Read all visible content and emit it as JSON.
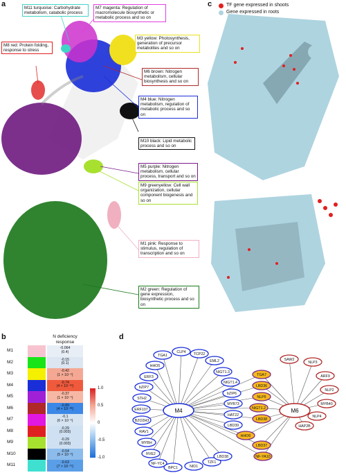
{
  "panels": {
    "a": "a",
    "b": "b",
    "c": "c",
    "d": "d"
  },
  "panel_a_labels": [
    {
      "id": "m11",
      "text": "M11 turquoise: Carbohydrate metabolism, catabolic process",
      "color": "#3fd6c6"
    },
    {
      "id": "m7",
      "text": "M7 magenta: Regulation of macromolecule biosynthetic or metabolic process and so on",
      "color": "#e040e0"
    },
    {
      "id": "m8",
      "text": "M8 red: Protein folding, response to stress",
      "color": "#e02020"
    },
    {
      "id": "m3",
      "text": "M3 yellow: Photosynthesis, generation of precursor metabolites and so on",
      "color": "#e8e020"
    },
    {
      "id": "m6",
      "text": "M6 brown: Nitrogen metabolism, cellular biosynthesis and so on",
      "color": "#b02828"
    },
    {
      "id": "m4",
      "text": "M4 blue: Nitrogen metabolism, regulation of metabolic process and so on",
      "color": "#1a2ed8"
    },
    {
      "id": "m10",
      "text": "M10 black: Lipid metabolic process and so on",
      "color": "#111111"
    },
    {
      "id": "m5",
      "text": "M5 purple: Nitrogen metabolism, cellular process, transport and so on",
      "color": "#7a1a8a"
    },
    {
      "id": "m9",
      "text": "M9 greenyellow: Cell wall organization, cellular component biogenesis and so on",
      "color": "#a8e030"
    },
    {
      "id": "m1",
      "text": "M1 pink: Response to stimulus, regulation of transcription and so on",
      "color": "#f0b0c0"
    },
    {
      "id": "m2",
      "text": "M2 green: Regulation of gene expression, biosynthetic process and so on",
      "color": "#1a7a1a"
    }
  ],
  "legend_c": [
    {
      "text": "TF gene expressed in shoots",
      "color": "#e02020"
    },
    {
      "text": "Gene expressed in roots",
      "color": "#aed4e0"
    }
  ],
  "panel_b": {
    "title": "N deficiency response",
    "rows": [
      {
        "name": "M1",
        "color": "#f7c3cf",
        "value": "-0.064",
        "p": "(0.4)",
        "heat": "#e8eef6"
      },
      {
        "name": "M2",
        "color": "#18e418",
        "value": "-0.15",
        "p": "(0.1)",
        "heat": "#dbe6f2"
      },
      {
        "name": "M3",
        "color": "#f4f000",
        "value": "-0.42",
        "p": "(1 × 10⁻⁵)",
        "heat": "#f4a894"
      },
      {
        "name": "M4",
        "color": "#1a2ed8",
        "value": "-0.74",
        "p": "(4 × 10⁻¹⁹)",
        "heat": "#f05a3c"
      },
      {
        "name": "M5",
        "color": "#a020d8",
        "value": "-0.37",
        "p": "(1 × 10⁻⁴)",
        "heat": "#f6b8a4"
      },
      {
        "name": "M6",
        "color": "#b02828",
        "value": "-0.89",
        "p": "(4 × 10⁻³⁸)",
        "heat": "#3c88e6"
      },
      {
        "name": "M7",
        "color": "#e018e0",
        "value": "-0.1",
        "p": "(6 × 10⁻⁶)",
        "heat": "#d6e4f2"
      },
      {
        "name": "M8",
        "color": "#e02020",
        "value": "-0.29",
        "p": "(0.003)",
        "heat": "#cfe0f2"
      },
      {
        "name": "M9",
        "color": "#a8e030",
        "value": "-0.29",
        "p": "(0.003)",
        "heat": "#cfe0f2"
      },
      {
        "name": "M10",
        "color": "#000000",
        "value": "-0.54",
        "p": "(5 × 10⁻⁹)",
        "heat": "#8cbcec"
      },
      {
        "name": "M11",
        "color": "#3fe0d0",
        "value": "-0.63",
        "p": "(7 × 10⁻¹²)",
        "heat": "#5a9ee8"
      }
    ],
    "colorbar_ticks": [
      "1.0",
      "0.5",
      "0",
      "-0.5",
      "-1.0"
    ]
  },
  "panel_d": {
    "hub_left": "M4",
    "hub_right": "M6",
    "left_nodes": [
      "TGA1",
      "CLP4",
      "TCP22",
      "EML2",
      "NIGT1.3",
      "NIGT1.4",
      "HHO5",
      "ERF3",
      "bZIP7",
      "STH2",
      "ERF107",
      "BZO2H3",
      "RAV1",
      "MYBH",
      "RVE2",
      "NF-YC4",
      "BPC1",
      "NID1",
      "TZF1",
      "LBD38"
    ],
    "middle_blue": [
      "bZIP6",
      "MYB73",
      "HAT22",
      "LBD39"
    ],
    "shared": [
      "TGA7",
      "LBD36",
      "NLP5",
      "NIGT1.2",
      "LBD38",
      "HHO6",
      "LBD37",
      "NF-YA10"
    ],
    "right_nodes": [
      "SAW2",
      "NLP3",
      "ARF9",
      "NLP2",
      "MYB40",
      "NLP4",
      "HAP2B"
    ]
  }
}
